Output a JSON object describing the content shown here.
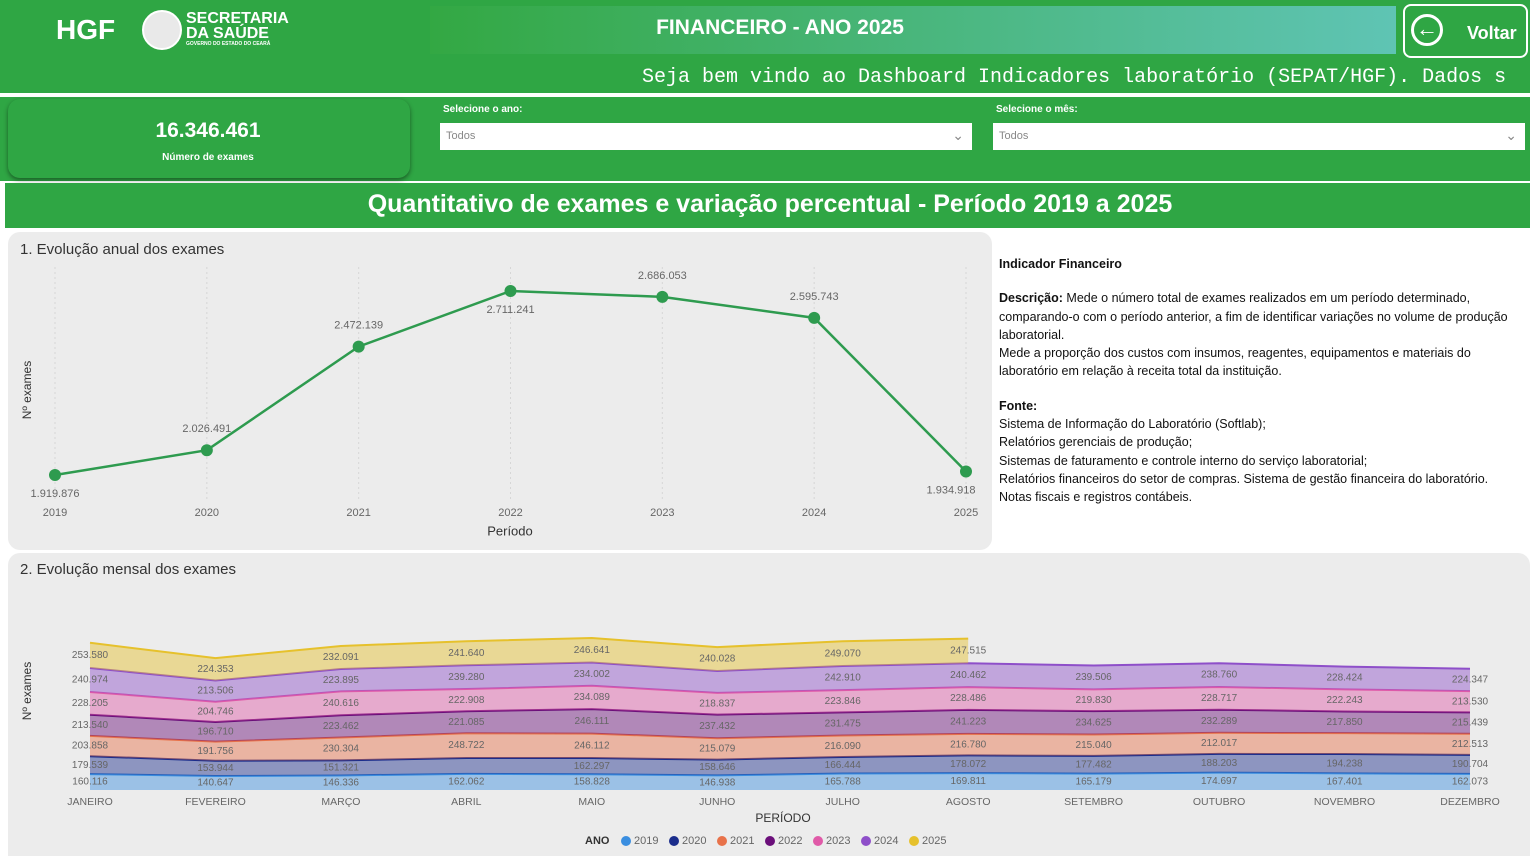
{
  "header": {
    "logo": "HGF",
    "org_line1": "SECRETARIA",
    "org_line2": "DA SAÚDE",
    "org_line3": "GOVERNO DO ESTADO DO CEARÁ",
    "title": "FINANCEIRO - ANO 2025",
    "back_button": "Voltar",
    "ticker": "Seja bem vindo ao Dashboard Indicadores laboratório (SEPAT/HGF). Dados s"
  },
  "kpi": {
    "value": "16.346.461",
    "label": "Número de exames"
  },
  "filters": [
    {
      "label": "Selecione o ano:",
      "value": "Todos"
    },
    {
      "label": "Selecione o mês:",
      "value": "Todos"
    }
  ],
  "section_title": "Quantitativo de exames e variação percentual - Período 2019 a 2025",
  "description": {
    "title": "Indicador Financeiro",
    "desc_label": "Descrição:",
    "desc_text": " Mede o número total de exames realizados em um período determinado, comparando-o com o período anterior, a fim de identificar variações no volume de produção laboratorial.",
    "desc_text2": "Mede a proporção dos custos com insumos, reagentes, equipamentos e materiais do laboratório em relação à receita total da instituição.",
    "source_label": "Fonte:",
    "sources": [
      "Sistema de Informação do Laboratório (Softlab);",
      "Relatórios gerenciais de produção;",
      "Sistemas de faturamento e controle interno do serviço laboratorial;",
      "Relatórios financeiros do setor de compras. Sistema de gestão financeira do laboratório. Notas fiscais e registros contábeis."
    ]
  },
  "chart_data": [
    {
      "type": "line",
      "title": "1. Evolução anual dos exames",
      "x_label": "Período",
      "y_label": "Nº exames",
      "color": "#2e9b4f",
      "categories": [
        "2019",
        "2020",
        "2021",
        "2022",
        "2023",
        "2024",
        "2025"
      ],
      "values": [
        1919876,
        2026491,
        2472139,
        2711241,
        2686053,
        2595743,
        1934918
      ],
      "value_labels": [
        "1.919.876",
        "2.026.491",
        "2.472.139",
        "2.711.241",
        "2.686.053",
        "2.595.743",
        "1.934.918"
      ]
    },
    {
      "type": "area",
      "stacked": true,
      "title": "2. Evolução mensal dos exames",
      "x_label": "PERÍODO",
      "y_label": "Nº exames",
      "legend_title": "ANO",
      "categories": [
        "JANEIRO",
        "FEVEREIRO",
        "MARÇO",
        "ABRIL",
        "MAIO",
        "JUNHO",
        "JULHO",
        "AGOSTO",
        "SETEMBRO",
        "OUTUBRO",
        "NOVEMBRO",
        "DEZEMBRO"
      ],
      "series": [
        {
          "name": "2019",
          "color": "#3a8ee0",
          "values": [
            160116,
            140647,
            146336,
            162062,
            158828,
            146938,
            165788,
            169811,
            165179,
            174697,
            167401,
            162073
          ],
          "value_labels": [
            "160.116",
            "140.647",
            "146.336",
            "162.062",
            "158.828",
            "146.938",
            "165.788",
            "169.811",
            "165.179",
            "174.697",
            "167.401",
            "162.073"
          ]
        },
        {
          "name": "2020",
          "color": "#1b2d8c",
          "values": [
            179539,
            153944,
            151321,
            160000,
            162297,
            158646,
            166444,
            178072,
            177482,
            188203,
            194238,
            190704
          ],
          "value_labels": [
            "179.539",
            "153.944",
            "151.321",
            null,
            "162.297",
            "158.646",
            "166.444",
            "178.072",
            "177.482",
            "188.203",
            "194.238",
            "190.704"
          ]
        },
        {
          "name": "2021",
          "color": "#e8724a",
          "values": [
            203858,
            191756,
            230304,
            248722,
            246112,
            215079,
            216090,
            216780,
            215040,
            212017,
            210000,
            212513
          ],
          "value_labels": [
            "203.858",
            "191.756",
            "230.304",
            "248.722",
            "246.112",
            "215.079",
            "216.090",
            "216.780",
            "215.040",
            "212.017",
            null,
            "212.513"
          ]
        },
        {
          "name": "2022",
          "color": "#6b0f7a",
          "values": [
            213540,
            196710,
            223462,
            221085,
            246111,
            237432,
            231475,
            241223,
            234625,
            232289,
            217850,
            215439
          ],
          "value_labels": [
            "213.540",
            "196.710",
            "223.462",
            "221.085",
            "246.111",
            "237.432",
            "231.475",
            "241.223",
            "234.625",
            "232.289",
            "217.850",
            "215.439"
          ]
        },
        {
          "name": "2023",
          "color": "#e05aa8",
          "values": [
            228205,
            204746,
            240616,
            222908,
            234089,
            218837,
            223846,
            228486,
            219830,
            228717,
            222243,
            213530
          ],
          "value_labels": [
            "228.205",
            "204.746",
            "240.616",
            "222.908",
            "234.089",
            "218.837",
            "223.846",
            "228.486",
            "219.830",
            "228.717",
            "222.243",
            "213.530"
          ]
        },
        {
          "name": "2024",
          "color": "#8e4fc9",
          "values": [
            240974,
            213506,
            223895,
            239280,
            234002,
            220000,
            242910,
            240462,
            239506,
            238760,
            228424,
            224347
          ],
          "value_labels": [
            "240.974",
            "213.506",
            "223.895",
            "239.280",
            "234.002",
            null,
            "242.910",
            "240.462",
            "239.506",
            "238.760",
            "228.424",
            "224.347"
          ]
        },
        {
          "name": "2025",
          "color": "#e6c12c",
          "values": [
            253580,
            224353,
            232091,
            241640,
            246641,
            240028,
            249070,
            247515,
            null,
            null,
            null,
            null
          ],
          "value_labels": [
            "253.580",
            "224.353",
            "232.091",
            "241.640",
            "246.641",
            "240.028",
            "249.070",
            "247.515",
            null,
            null,
            null,
            null
          ]
        }
      ]
    }
  ]
}
